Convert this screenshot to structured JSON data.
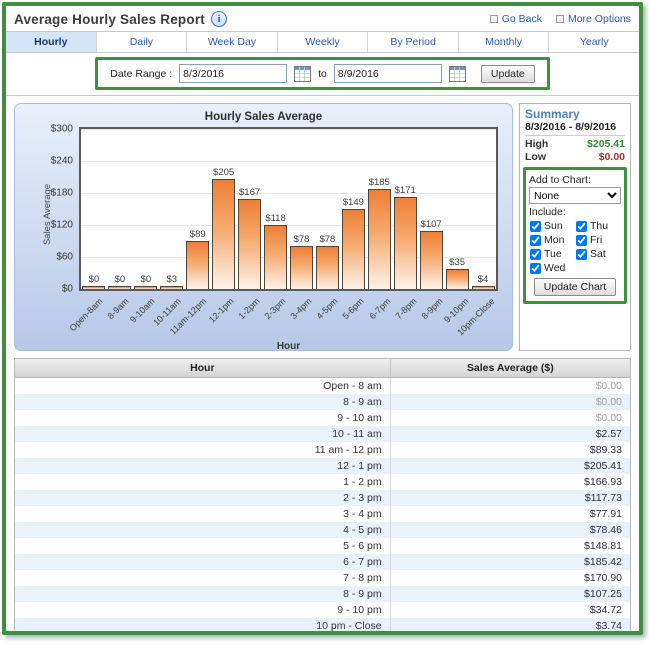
{
  "colors": {
    "annotation_green": "#3d9140",
    "bar_orange": "#ee7f35",
    "high_green": "#2e8b2e",
    "low_red": "#993333",
    "link_blue": "#2a58b8",
    "active_tab_bg": "#d6e4f7"
  },
  "header": {
    "title": "Average Hourly Sales Report",
    "links": [
      {
        "label": "Go Back"
      },
      {
        "label": "More Options"
      }
    ]
  },
  "tabs": {
    "items": [
      {
        "label": "Hourly",
        "active": true
      },
      {
        "label": "Daily",
        "active": false
      },
      {
        "label": "Week Day",
        "active": false
      },
      {
        "label": "Weekly",
        "active": false
      },
      {
        "label": "By Period",
        "active": false
      },
      {
        "label": "Monthly",
        "active": false
      },
      {
        "label": "Yearly",
        "active": false
      }
    ]
  },
  "date_range": {
    "label": "Date Range :",
    "from": "8/3/2016",
    "to_label": "to",
    "to": "8/9/2016",
    "update_label": "Update"
  },
  "chart_data": {
    "type": "bar",
    "title": "Hourly Sales Average",
    "xlabel": "Hour",
    "ylabel": "Sales Average",
    "ylim": [
      0,
      300
    ],
    "grid": true,
    "legend": false,
    "yticks_top_down": [
      "$300",
      "$240",
      "$180",
      "$120",
      "$60",
      "$0"
    ],
    "categories": [
      "Open-8am",
      "8-9am",
      "9-10am",
      "10-11am",
      "11am-12pm",
      "12-1pm",
      "1-2pm",
      "2-3pm",
      "3-4pm",
      "4-5pm",
      "5-6pm",
      "6-7pm",
      "7-8pm",
      "8-9pm",
      "9-10pm",
      "10pm-Close"
    ],
    "values": [
      0,
      0,
      0,
      3,
      89,
      205,
      167,
      118,
      78,
      78,
      149,
      185,
      171,
      107,
      35,
      4
    ],
    "bar_labels": [
      "$0",
      "$0",
      "$0",
      "$3",
      "$89",
      "$205",
      "$167",
      "$118",
      "$78",
      "$78",
      "$149",
      "$185",
      "$171",
      "$107",
      "$35",
      "$4"
    ]
  },
  "summary": {
    "title": "Summary",
    "range": "8/3/2016 - 8/9/2016",
    "high_label": "High",
    "high_value": "$205.41",
    "low_label": "Low",
    "low_value": "$0.00",
    "add_to_chart_label": "Add to Chart:",
    "add_to_chart_value": "None",
    "include_label": "Include:",
    "day_columns": [
      [
        "Sun",
        "Mon",
        "Tue",
        "Wed"
      ],
      [
        "Thu",
        "Fri",
        "Sat"
      ]
    ],
    "all_checked": true,
    "update_button_label": "Update Chart"
  },
  "table": {
    "headers": [
      "Hour",
      "Sales Average ($)"
    ],
    "rows": [
      [
        "Open - 8 am",
        "$0.00"
      ],
      [
        "8 - 9 am",
        "$0.00"
      ],
      [
        "9 - 10 am",
        "$0.00"
      ],
      [
        "10 - 11 am",
        "$2.57"
      ],
      [
        "11 am - 12 pm",
        "$89.33"
      ],
      [
        "12 - 1 pm",
        "$205.41"
      ],
      [
        "1 - 2 pm",
        "$166.93"
      ],
      [
        "2 - 3 pm",
        "$117.73"
      ],
      [
        "3 - 4 pm",
        "$77.91"
      ],
      [
        "4 - 5 pm",
        "$78.46"
      ],
      [
        "5 - 6 pm",
        "$148.81"
      ],
      [
        "6 - 7 pm",
        "$185.42"
      ],
      [
        "7 - 8 pm",
        "$170.90"
      ],
      [
        "8 - 9 pm",
        "$107.25"
      ],
      [
        "9 - 10 pm",
        "$34.72"
      ],
      [
        "10 pm - Close",
        "$3.74"
      ]
    ]
  }
}
